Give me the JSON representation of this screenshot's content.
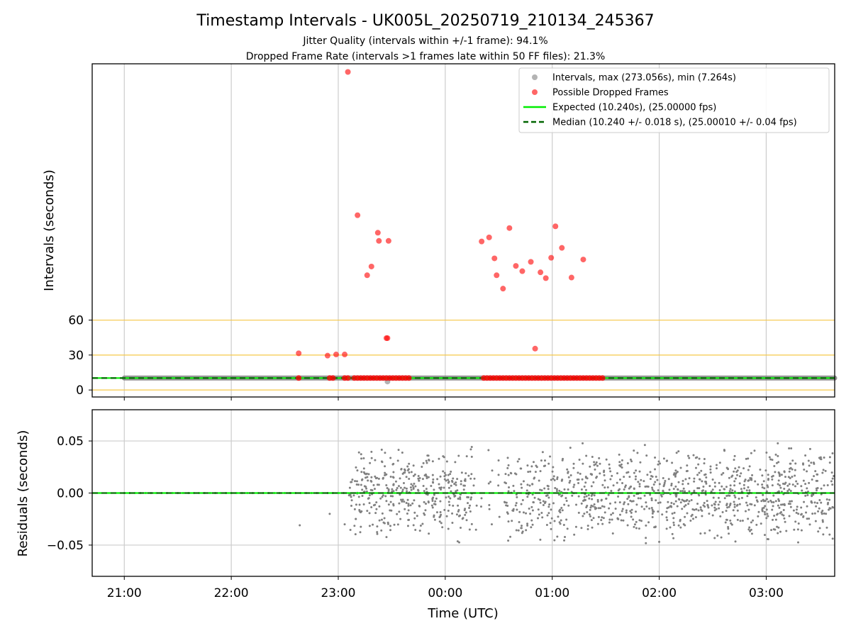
{
  "title": "Timestamp Intervals - UK005L_20250719_210134_245367",
  "subtitle_1": "Jitter Quality (intervals within +/-1 frame): 94.1%",
  "subtitle_2": "Dropped Frame Rate (intervals >1 frames late within 50 FF files): 21.3%",
  "colors": {
    "intervals": "#808080",
    "dropped": "#ff0000",
    "expected": "#00ee00",
    "median": "#006400",
    "threshold_lines": "#f5c84a",
    "grid": "#cccccc"
  },
  "chart_data": [
    {
      "type": "scatter",
      "ylabel": "Intervals (seconds)",
      "y_ticks": [
        0,
        30,
        60
      ],
      "y_tick_labels": [
        "0",
        "30",
        "60"
      ],
      "ylim": [
        -6,
        280
      ],
      "x_ticks": [
        "21:00",
        "22:00",
        "23:00",
        "00:00",
        "01:00",
        "02:00",
        "03:00"
      ],
      "xlim_hours": [
        20.7,
        27.64
      ],
      "legend_position": "top-right",
      "legend": [
        {
          "key": "intervals",
          "label": "Intervals, max (273.056s), min (7.264s)"
        },
        {
          "key": "dropped",
          "label": "Possible Dropped Frames"
        },
        {
          "key": "expected",
          "label": "Expected (10.240s), (25.00000 fps)"
        },
        {
          "key": "median",
          "label": "Median (10.240 +/- 0.018 s), (25.00010 +/- 0.04 fps)"
        }
      ],
      "threshold_lines": [
        0,
        30,
        60
      ],
      "expected_interval": 10.24,
      "median_interval": 10.24,
      "intervals_range": {
        "x_start": 21.0,
        "x_end": 27.64,
        "y": 10.24
      },
      "series": [
        {
          "name": "Possible Dropped Frames",
          "x": [
            22.63,
            22.9,
            22.98,
            23.09,
            23.06,
            23.18,
            23.27,
            23.31,
            23.37,
            23.38,
            23.47,
            23.45,
            23.46,
            24.34,
            24.41,
            24.46,
            24.48,
            24.54,
            24.6,
            24.66,
            24.72,
            24.8,
            24.84,
            24.89,
            24.94,
            24.99,
            25.03,
            25.09,
            25.18,
            25.29
          ],
          "y": [
            31.5,
            29.5,
            30.5,
            273.0,
            30.5,
            150.0,
            98.5,
            106.0,
            135.0,
            128.0,
            128.0,
            44.5,
            44.5,
            127.5,
            131.0,
            113.0,
            98.5,
            87.0,
            139.0,
            106.5,
            102.0,
            110.0,
            35.5,
            101.0,
            96.0,
            113.5,
            140.5,
            122.0,
            96.5,
            112.0
          ]
        }
      ],
      "dropped_cluster_ranges_near_expected": [
        [
          22.63,
          22.64
        ],
        [
          22.92,
          22.97
        ],
        [
          23.06,
          23.09
        ],
        [
          23.15,
          23.68
        ],
        [
          24.36,
          25.48
        ]
      ]
    },
    {
      "type": "scatter",
      "ylabel": "Residuals (seconds)",
      "xlabel": "Time (UTC)",
      "y_ticks": [
        -0.05,
        0.0,
        0.05
      ],
      "y_tick_labels": [
        "−0.05",
        "0.00",
        "0.05"
      ],
      "ylim": [
        -0.08,
        0.08
      ],
      "x_ticks": [
        "21:00",
        "22:00",
        "23:00",
        "00:00",
        "01:00",
        "02:00",
        "03:00"
      ],
      "xlim_hours": [
        20.7,
        27.64
      ],
      "flat_until_hour": 23.1,
      "scatter_amplitude": 0.05,
      "scatter_points_approx": 1500
    }
  ]
}
